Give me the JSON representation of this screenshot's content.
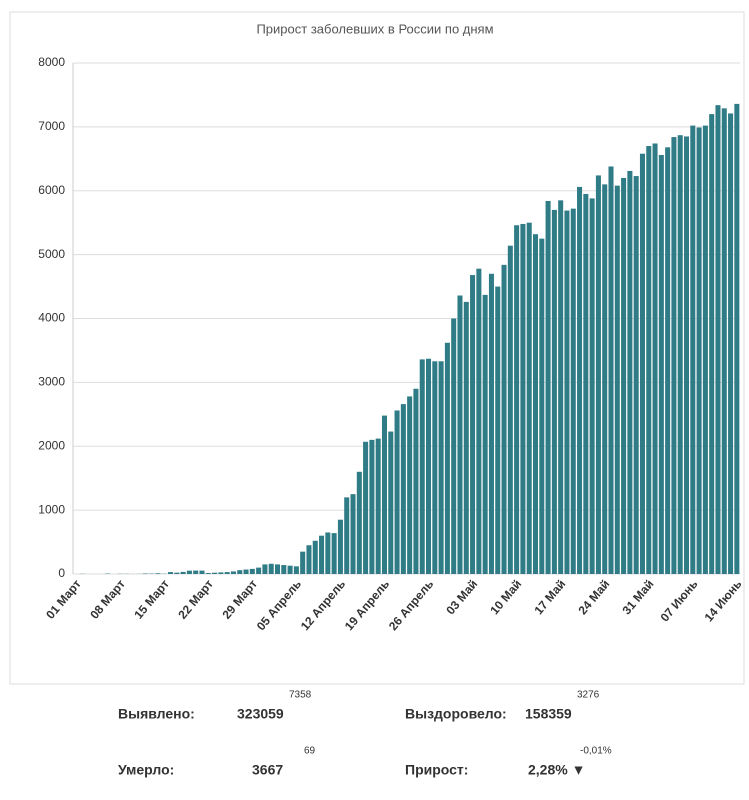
{
  "chart_data": {
    "type": "bar",
    "title": "Прирост заболевших в России по дням",
    "categories": [
      "01 Март",
      null,
      null,
      null,
      null,
      null,
      null,
      "08 Март",
      null,
      null,
      null,
      null,
      null,
      null,
      "15 Март",
      null,
      null,
      null,
      null,
      null,
      null,
      "22 Март",
      null,
      null,
      null,
      null,
      null,
      null,
      "29 Март",
      null,
      null,
      null,
      null,
      null,
      null,
      "05 Апрель",
      null,
      null,
      null,
      null,
      null,
      null,
      "12 Апрель",
      null,
      null,
      null,
      null,
      null,
      null,
      "19 Апрель",
      null,
      null,
      null,
      null,
      null,
      null,
      "26 Апрель",
      null,
      null,
      null,
      null,
      null,
      null,
      "03 Май",
      null,
      null,
      null,
      null,
      null,
      null,
      "10 Май",
      null,
      null,
      null,
      null,
      null,
      null,
      "17 Май",
      null,
      null,
      null,
      null,
      null,
      null,
      "24 Май",
      null,
      null,
      null,
      null,
      null,
      null,
      "31 Май",
      null,
      null,
      null,
      null,
      null,
      null,
      "07 Июнь",
      null,
      null,
      null,
      null,
      null,
      null,
      "14 Июнь"
    ],
    "values": [
      0,
      3,
      0,
      0,
      0,
      6,
      0,
      3,
      3,
      1,
      2,
      8,
      6,
      11,
      4,
      30,
      21,
      33,
      52,
      54,
      53,
      15,
      20,
      25,
      30,
      40,
      60,
      70,
      80,
      100,
      150,
      160,
      150,
      140,
      130,
      120,
      350,
      450,
      520,
      600,
      650,
      640,
      850,
      1200,
      1250,
      1600,
      2070,
      2100,
      2120,
      2480,
      2230,
      2560,
      2660,
      2780,
      2900,
      3360,
      3370,
      3330,
      3330,
      3620,
      4000,
      4360,
      4260,
      4680,
      4780,
      4370,
      4700,
      4500,
      4840,
      5140,
      5460,
      5480,
      5500,
      5320,
      5250,
      5840,
      5700,
      5850,
      5690,
      5720,
      6060,
      5950,
      5880,
      6240,
      6100,
      6380,
      6080,
      6200,
      6310,
      6230,
      6580,
      6700,
      6740,
      6560,
      6680,
      6840,
      6870,
      6850,
      7020,
      6990,
      7020,
      7200,
      7340,
      7290,
      7210,
      7360
    ],
    "color": "#2f7c86",
    "ylim": [
      0,
      8000
    ],
    "yticks": [
      0,
      1000,
      2000,
      3000,
      4000,
      5000,
      6000,
      7000,
      8000
    ],
    "grid": true
  },
  "stats": [
    {
      "label": "Выявлено:",
      "value": "323059",
      "delta": "7358"
    },
    {
      "label": "Выздоровело:",
      "value": "158359",
      "delta": "3276"
    },
    {
      "label": "Умерло:",
      "value": "3667",
      "delta": "69"
    },
    {
      "label": "Прирост:",
      "value": "2,28% ▼",
      "delta": "-0,01%"
    }
  ]
}
